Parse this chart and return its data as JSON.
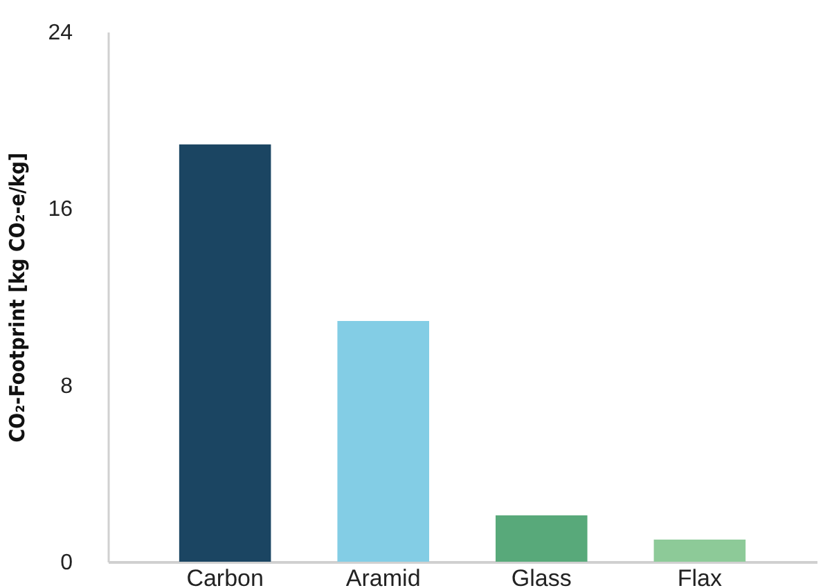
{
  "chart_data": {
    "type": "bar",
    "ylabel": "CO₂-Footprint [kg CO₂-e/kg]",
    "categories": [
      "Carbon",
      "Aramid",
      "Glass",
      "Flax"
    ],
    "values": [
      18.9,
      10.9,
      2.1,
      1.0
    ],
    "colors": [
      "#1b4562",
      "#83cde5",
      "#58a97a",
      "#8dca98"
    ],
    "ylim": [
      0,
      24
    ],
    "yticks": [
      0,
      8,
      16,
      24
    ],
    "grid": false
  }
}
